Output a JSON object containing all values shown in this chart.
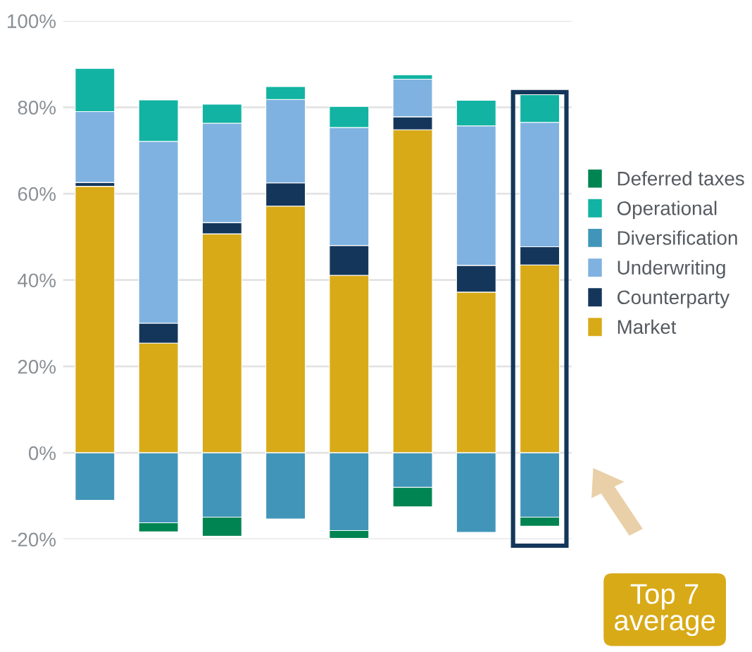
{
  "chart_data": {
    "type": "bar",
    "stacked": true,
    "categories": [
      null,
      null,
      null,
      null,
      null,
      null,
      null,
      null
    ],
    "series": [
      {
        "name": "Market",
        "color": "#d8aa18",
        "values": [
          61.7,
          25.4,
          50.7,
          57.1,
          41.1,
          74.8,
          37.2,
          43.5
        ]
      },
      {
        "name": "Counterparty",
        "color": "#14365a",
        "values": [
          0.9,
          4.6,
          2.6,
          5.4,
          6.9,
          3.0,
          6.2,
          4.2
        ]
      },
      {
        "name": "Underwriting",
        "color": "#7fb2e0",
        "values": [
          16.4,
          42.1,
          23.0,
          19.3,
          27.3,
          8.7,
          32.3,
          28.8
        ]
      },
      {
        "name": "Diversification",
        "color": "#4195b9",
        "values": [
          -11.0,
          -16.2,
          -14.9,
          -15.3,
          -18.0,
          -8.0,
          -18.4,
          -14.9
        ]
      },
      {
        "name": "Operational",
        "color": "#12b3a2",
        "values": [
          10.0,
          9.6,
          4.4,
          3.0,
          4.9,
          1.0,
          5.9,
          6.4
        ]
      },
      {
        "name": "Deferred taxes",
        "color": "#008452",
        "values": [
          null,
          -2.1,
          -4.4,
          null,
          -1.8,
          -4.5,
          null,
          -2.1
        ]
      }
    ],
    "ylim": [
      -20,
      100
    ],
    "yticks": [
      {
        "value": -20,
        "label": "-20%"
      },
      {
        "value": 0,
        "label": "0%"
      },
      {
        "value": 20,
        "label": "20%"
      },
      {
        "value": 40,
        "label": "40%"
      },
      {
        "value": 60,
        "label": "60%"
      },
      {
        "value": 80,
        "label": "80%"
      },
      {
        "value": 100,
        "label": "100%"
      }
    ],
    "grid": "y",
    "legend": "right",
    "annotations": [
      "Top 7 average"
    ]
  }
}
